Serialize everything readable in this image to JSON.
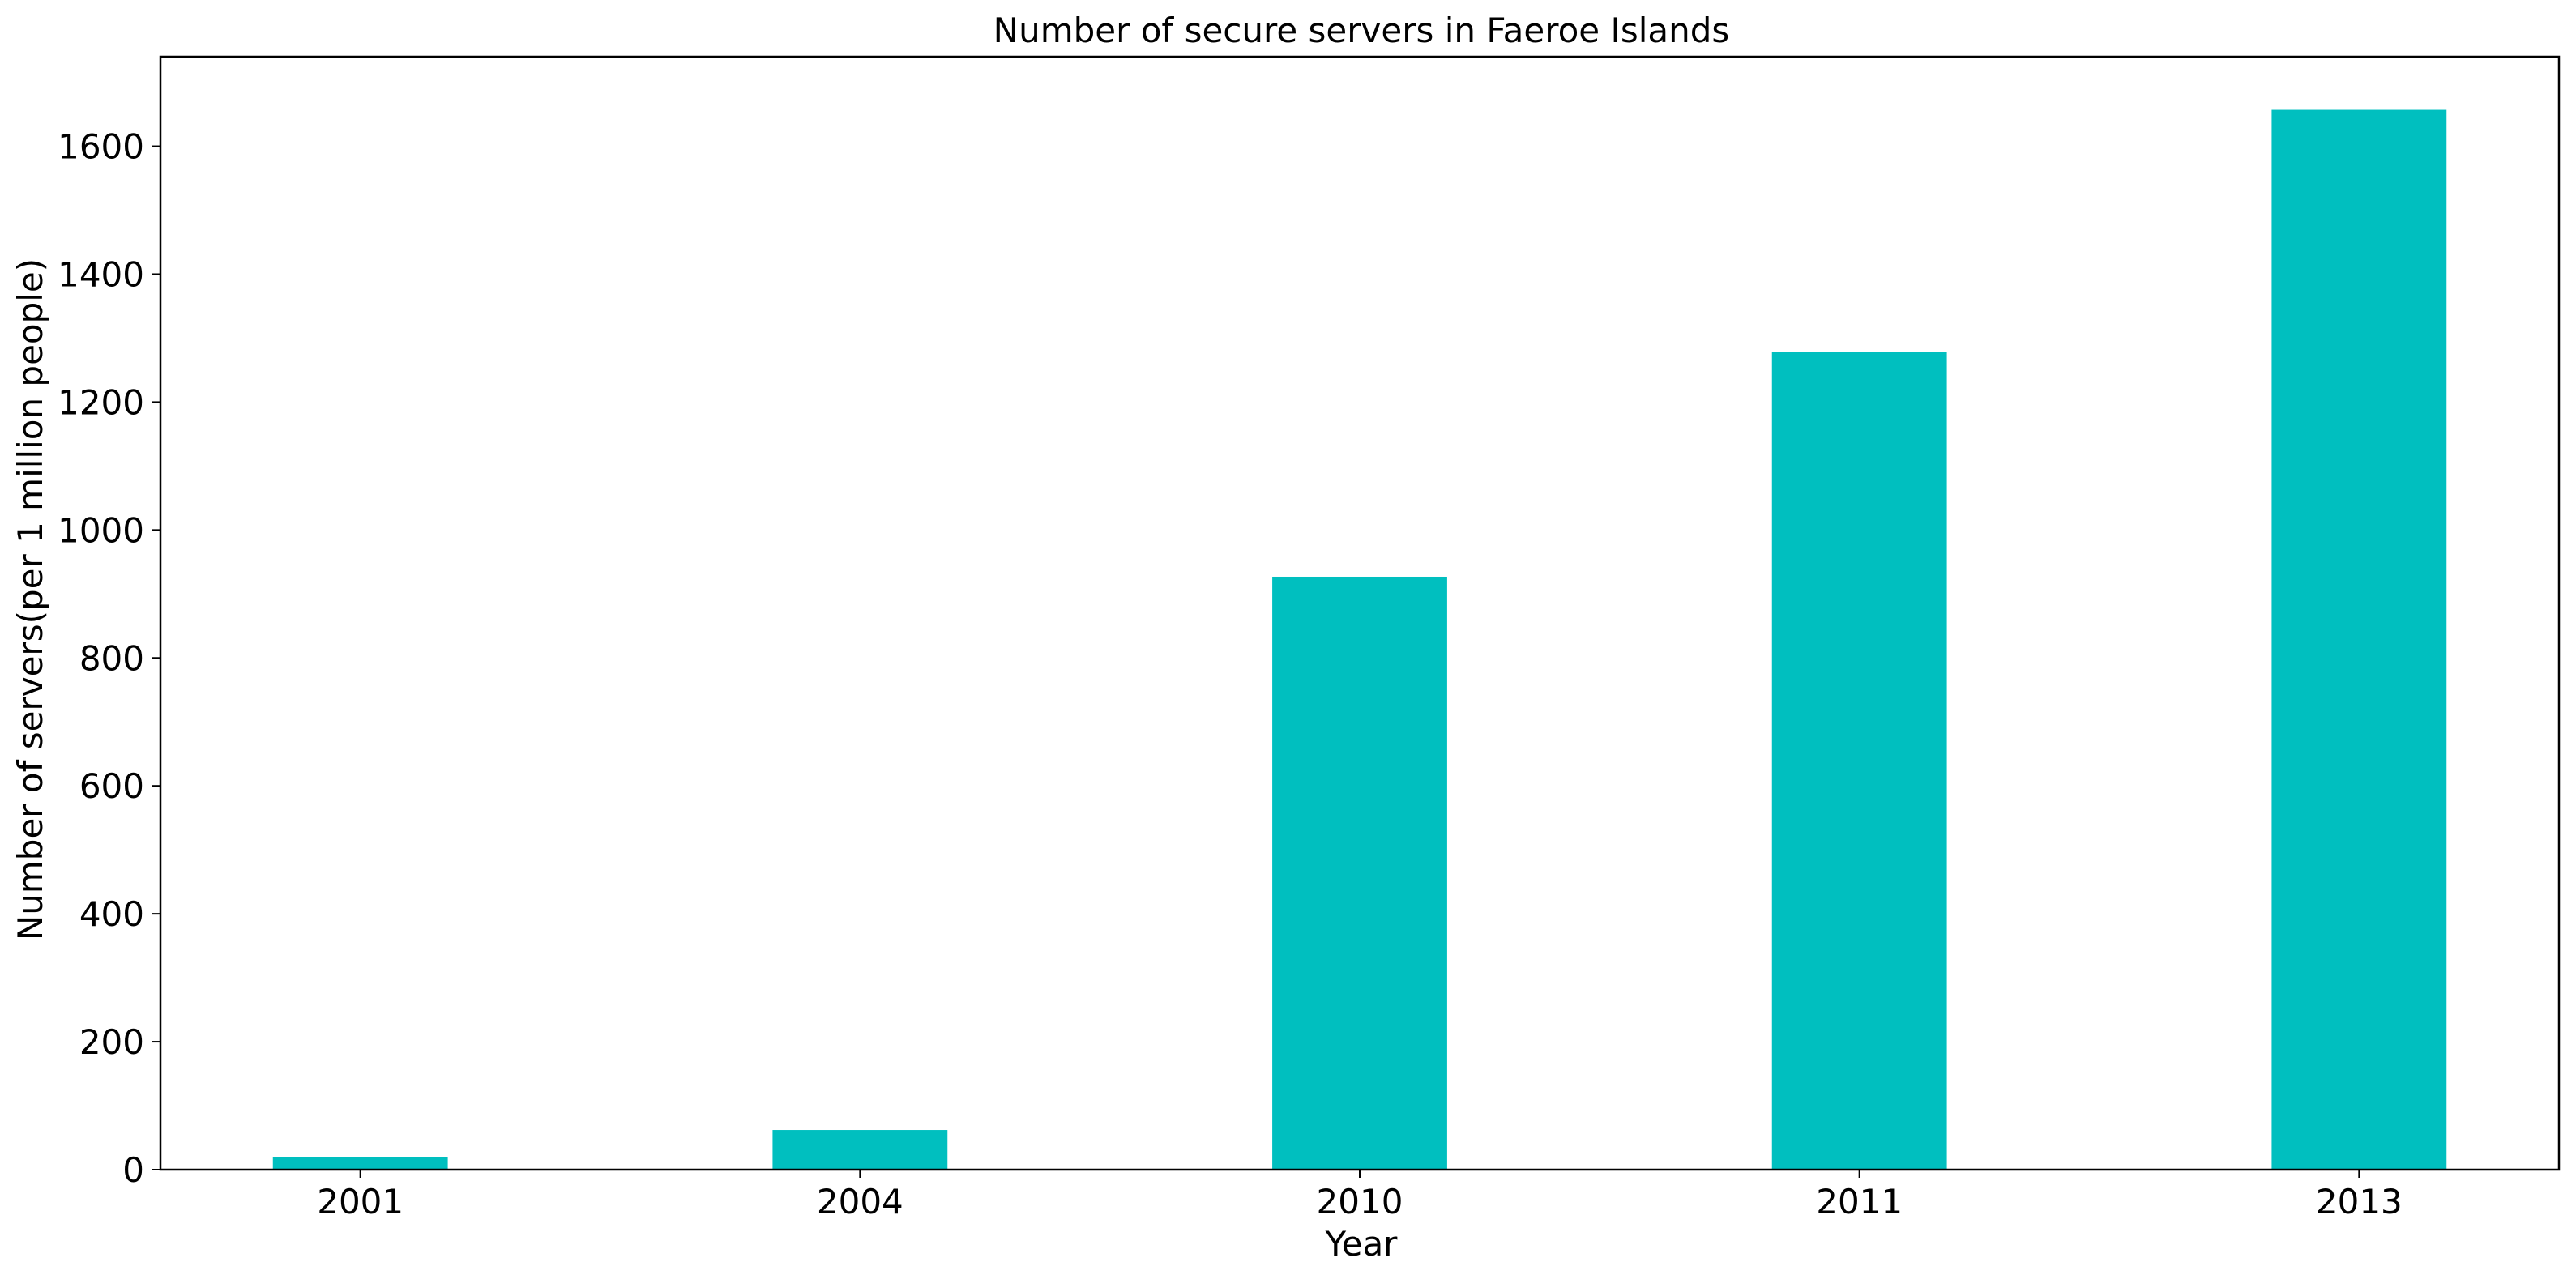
{
  "chart_data": {
    "type": "bar",
    "title": "Number of secure servers in Faeroe Islands",
    "xlabel": "Year",
    "ylabel": "Number of servers(per 1 million people)",
    "categories": [
      "2001",
      "2004",
      "2010",
      "2011",
      "2013"
    ],
    "values": [
      20,
      62,
      927,
      1279,
      1657
    ],
    "ylim": [
      0,
      1740
    ],
    "yticks": [
      0,
      200,
      400,
      600,
      800,
      1000,
      1200,
      1400,
      1600
    ],
    "ytick_labels": [
      "0",
      "200",
      "400",
      "600",
      "800",
      "1000",
      "1200",
      "1400",
      "1600"
    ],
    "bar_color": "#00bfbf",
    "grid": false,
    "legend": "none"
  }
}
